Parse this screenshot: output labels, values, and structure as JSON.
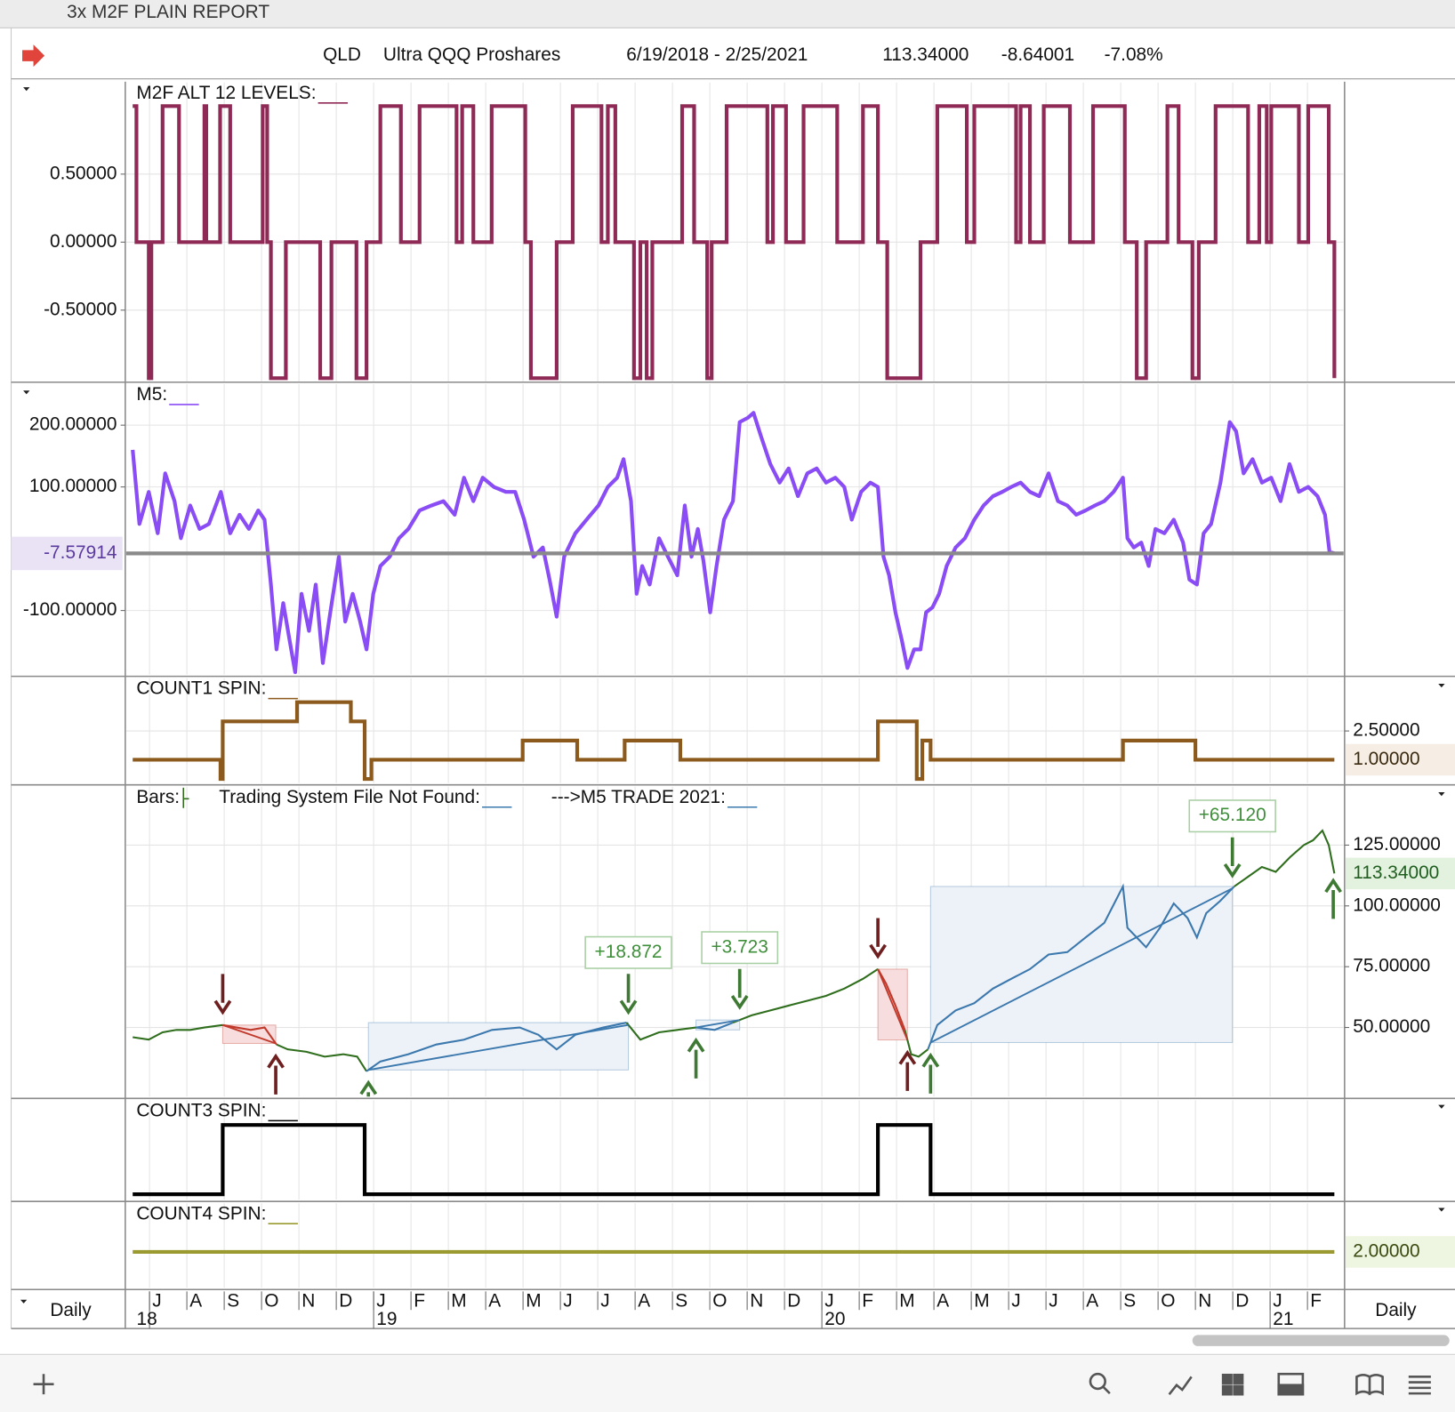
{
  "window_title": "3x M2F PLAIN REPORT",
  "header": {
    "symbol": "QLD",
    "name": "Ultra QQQ Proshares",
    "date_range": "6/19/2018 - 2/25/2021",
    "last": "113.34000",
    "change": "-8.64001",
    "change_percent": "-7.08%"
  },
  "x_axis": {
    "xlim": [
      -0.45,
      31.72
    ],
    "xticks": [
      {
        "value": 0,
        "label": "J"
      },
      {
        "value": 1,
        "label": "A"
      },
      {
        "value": 2,
        "label": "S"
      },
      {
        "value": 3,
        "label": "O"
      },
      {
        "value": 4,
        "label": "N"
      },
      {
        "value": 5,
        "label": "D"
      },
      {
        "value": 6,
        "label": "J"
      },
      {
        "value": 7,
        "label": "F"
      },
      {
        "value": 8,
        "label": "M"
      },
      {
        "value": 9,
        "label": "A"
      },
      {
        "value": 10,
        "label": "M"
      },
      {
        "value": 11,
        "label": "J"
      },
      {
        "value": 12,
        "label": "J"
      },
      {
        "value": 13,
        "label": "A"
      },
      {
        "value": 14,
        "label": "S"
      },
      {
        "value": 15,
        "label": "O"
      },
      {
        "value": 16,
        "label": "N"
      },
      {
        "value": 17,
        "label": "D"
      },
      {
        "value": 18,
        "label": "J"
      },
      {
        "value": 19,
        "label": "F"
      },
      {
        "value": 20,
        "label": "M"
      },
      {
        "value": 21,
        "label": "A"
      },
      {
        "value": 22,
        "label": "M"
      },
      {
        "value": 23,
        "label": "J"
      },
      {
        "value": 24,
        "label": "J"
      },
      {
        "value": 25,
        "label": "A"
      },
      {
        "value": 26,
        "label": "S"
      },
      {
        "value": 27,
        "label": "O"
      },
      {
        "value": 28,
        "label": "N"
      },
      {
        "value": 29,
        "label": "D"
      },
      {
        "value": 30,
        "label": "J"
      },
      {
        "value": 31,
        "label": "F"
      }
    ],
    "years": [
      {
        "value": 0,
        "label": "18"
      },
      {
        "value": 6,
        "label": "19"
      },
      {
        "value": 18,
        "label": "20"
      },
      {
        "value": 30,
        "label": "21"
      }
    ],
    "period_label": "Daily"
  },
  "chart_data": [
    {
      "type": "step",
      "title": "M2F ALT 12 LEVELS:",
      "color": "#8e2a55",
      "axis_side": "left",
      "ylim": [
        -1.03,
        1.18
      ],
      "yticks": [
        {
          "value": 0.5,
          "label": "0.50000"
        },
        {
          "value": 0,
          "label": "0.00000"
        },
        {
          "value": -0.5,
          "label": "-0.50000"
        }
      ],
      "x": [
        -0.45,
        -0.35,
        -0.02,
        0.05,
        0.35,
        0.79,
        1.47,
        1.52,
        1.89,
        2.16,
        3.03,
        3.15,
        3.25,
        3.65,
        4.57,
        4.87,
        5.54,
        5.81,
        6.18,
        6.73,
        7.23,
        8.22,
        8.37,
        8.67,
        9.16,
        10.06,
        10.21,
        10.9,
        11.33,
        12.1,
        12.27,
        12.47,
        12.97,
        13.14,
        13.31,
        13.46,
        14.26,
        14.58,
        14.93,
        15.05,
        15.45,
        16.54,
        16.69,
        17.04,
        17.51,
        18.41,
        19.1,
        19.5,
        19.75,
        20.64,
        21.09,
        21.88,
        22.08,
        23.2,
        23.32,
        23.57,
        23.94,
        24.64,
        25.26,
        26.11,
        26.43,
        26.68,
        27.25,
        27.55,
        27.92,
        28.09,
        28.54,
        29.41,
        29.71,
        29.91,
        30.03,
        30.77,
        31.02,
        31.57,
        31.72
      ],
      "values": [
        1,
        0,
        -1,
        0,
        1,
        0,
        1,
        0,
        1,
        0,
        1,
        0,
        -1,
        0,
        -1,
        0,
        -1,
        0,
        1,
        0,
        1,
        0,
        1,
        0,
        1,
        0,
        -1,
        0,
        1,
        0,
        1,
        0,
        -1,
        0,
        -1,
        0,
        1,
        0,
        -1,
        0,
        1,
        0,
        1,
        0,
        1,
        0,
        1,
        0,
        -1,
        0,
        1,
        0,
        1,
        0,
        1,
        0,
        1,
        0,
        1,
        0,
        -1,
        0,
        1,
        0,
        -1,
        0,
        1,
        0,
        1,
        0,
        1,
        0,
        1,
        0,
        -1
      ]
    },
    {
      "type": "line",
      "title": "M5:",
      "color": "#8a4cf5",
      "axis_side": "left",
      "ylim": [
        -205,
        268
      ],
      "yticks": [
        {
          "value": 200,
          "label": "200.00000"
        },
        {
          "value": 100,
          "label": "100.00000"
        },
        {
          "value": -100,
          "label": "-100.00000"
        }
      ],
      "x": [
        -0.45,
        -0.27,
        -0.02,
        0.22,
        0.42,
        0.67,
        0.84,
        1.09,
        1.34,
        1.59,
        1.91,
        2.16,
        2.41,
        2.66,
        2.91,
        3.08,
        3.25,
        3.4,
        3.58,
        3.75,
        3.9,
        4.07,
        4.27,
        4.45,
        4.64,
        4.84,
        5.07,
        5.24,
        5.44,
        5.64,
        5.81,
        5.99,
        6.18,
        6.43,
        6.68,
        6.93,
        7.23,
        7.55,
        7.87,
        8.17,
        8.42,
        8.67,
        8.92,
        9.22,
        9.54,
        9.79,
        10.03,
        10.28,
        10.53,
        10.71,
        10.9,
        11.1,
        11.4,
        11.7,
        12.02,
        12.27,
        12.52,
        12.69,
        12.89,
        13.04,
        13.19,
        13.39,
        13.64,
        13.88,
        14.13,
        14.33,
        14.51,
        14.68,
        14.83,
        15.01,
        15.18,
        15.38,
        15.62,
        15.8,
        16.02,
        16.17,
        16.37,
        16.62,
        16.87,
        17.11,
        17.36,
        17.61,
        17.86,
        18.11,
        18.36,
        18.6,
        18.8,
        19.05,
        19.3,
        19.5,
        19.65,
        19.8,
        19.97,
        20.14,
        20.29,
        20.47,
        20.64,
        20.79,
        20.96,
        21.14,
        21.34,
        21.58,
        21.83,
        22.08,
        22.33,
        22.58,
        22.83,
        23.07,
        23.32,
        23.57,
        23.82,
        24.07,
        24.32,
        24.57,
        24.81,
        25.06,
        25.31,
        25.56,
        25.81,
        26.06,
        26.18,
        26.35,
        26.55,
        26.75,
        26.93,
        27.17,
        27.42,
        27.67,
        27.84,
        28.04,
        28.22,
        28.42,
        28.67,
        28.92,
        29.09,
        29.29,
        29.53,
        29.78,
        30.03,
        30.28,
        30.52,
        30.77,
        31.02,
        31.27,
        31.47,
        31.59,
        31.72
      ],
      "values": [
        160,
        40,
        92,
        25,
        122,
        77,
        17,
        70,
        32,
        40,
        92,
        25,
        55,
        32,
        62,
        47,
        -58,
        -163,
        -88,
        -148,
        -200,
        -73,
        -133,
        -58,
        -185,
        -103,
        -13,
        -118,
        -73,
        -118,
        -163,
        -73,
        -28,
        -13,
        17,
        32,
        62,
        70,
        77,
        55,
        115,
        77,
        115,
        100,
        92,
        92,
        47,
        -13,
        2,
        -50,
        -110,
        -13,
        25,
        47,
        70,
        100,
        115,
        145,
        77,
        -73,
        -28,
        -58,
        17,
        -13,
        -43,
        70,
        -13,
        32,
        -20,
        -103,
        -28,
        47,
        77,
        205,
        212,
        220,
        182,
        137,
        107,
        130,
        85,
        122,
        130,
        107,
        115,
        100,
        47,
        92,
        107,
        100,
        -13,
        -43,
        -103,
        -148,
        -193,
        -163,
        -163,
        -103,
        -95,
        -73,
        -28,
        2,
        17,
        47,
        70,
        85,
        92,
        100,
        107,
        92,
        85,
        122,
        77,
        70,
        55,
        62,
        70,
        77,
        92,
        115,
        17,
        2,
        10,
        -28,
        32,
        25,
        47,
        10,
        -50,
        -58,
        25,
        40,
        107,
        205,
        190,
        122,
        145,
        107,
        115,
        77,
        137,
        92,
        100,
        85,
        55,
        -5,
        -7.57914
      ],
      "last_value": {
        "value": -7.57914,
        "label": "-7.57914",
        "fill": "#e9e3f5",
        "text_color": "#5c3b9e",
        "line_color": "#8a8a8a"
      }
    },
    {
      "type": "step",
      "title": "COUNT1 SPIN:",
      "color": "#8b5a1c",
      "axis_side": "right",
      "ylim": [
        -0.26,
        5.3
      ],
      "yticks": [
        {
          "value": 2.5,
          "label": "2.50000"
        }
      ],
      "x": [
        -0.45,
        1.9,
        1.96,
        3.95,
        5.39,
        5.76,
        5.94,
        9.99,
        11.45,
        12.72,
        14.21,
        19.5,
        20.54,
        20.69,
        20.91,
        26.06,
        28.0,
        31.72
      ],
      "values": [
        1,
        0,
        3,
        4,
        3,
        0,
        1,
        2,
        1,
        2,
        1,
        3,
        0,
        2,
        1,
        2,
        1,
        1
      ],
      "last_value": {
        "value": 1,
        "label": "1.00000",
        "fill": "#f6eee4",
        "text_color": "#3a2a10"
      }
    },
    {
      "type": "price",
      "titles": [
        "Bars:",
        "Trading System File Not Found:",
        "--->M5 TRADE 2021:"
      ],
      "color": "#2f6e1d",
      "axis_side": "right",
      "ylim": [
        21.2,
        149.4
      ],
      "yticks": [
        {
          "value": 125,
          "label": "125.00000"
        },
        {
          "value": 100,
          "label": "100.00000"
        },
        {
          "value": 75,
          "label": "75.00000"
        },
        {
          "value": 50,
          "label": "50.00000"
        }
      ],
      "x": [
        -0.45,
        -0.02,
        0.35,
        0.72,
        1.09,
        1.47,
        1.96,
        2.33,
        2.71,
        3.08,
        3.4,
        3.7,
        4.2,
        4.69,
        5.19,
        5.56,
        5.81,
        6.18,
        6.93,
        7.68,
        8.42,
        9.17,
        9.91,
        10.41,
        10.9,
        11.4,
        12.15,
        12.77,
        13.14,
        13.64,
        14.13,
        14.63,
        15.13,
        15.62,
        16.12,
        16.62,
        17.11,
        17.61,
        18.11,
        18.6,
        19.1,
        19.5,
        19.72,
        19.97,
        20.22,
        20.39,
        20.59,
        20.84,
        21.09,
        21.58,
        22.08,
        22.58,
        23.07,
        23.57,
        24.07,
        24.57,
        25.06,
        25.56,
        26.06,
        26.18,
        26.43,
        26.68,
        27.05,
        27.42,
        27.79,
        28.04,
        28.29,
        28.66,
        29.04,
        29.41,
        29.78,
        30.15,
        30.53,
        30.9,
        31.15,
        31.4,
        31.57,
        31.72
      ],
      "values": [
        46,
        45,
        48,
        49,
        49,
        50,
        51,
        50,
        49,
        50,
        43,
        41,
        40,
        38,
        39,
        38,
        32,
        36,
        39,
        43,
        45,
        49,
        50,
        47,
        41,
        47,
        50,
        52,
        45,
        48,
        49,
        50,
        49,
        52,
        55,
        57,
        59,
        61,
        63,
        66,
        70,
        74,
        68,
        59,
        49,
        39,
        38,
        41,
        51,
        57,
        60,
        66,
        70,
        74,
        80,
        81,
        87,
        93,
        108,
        91,
        87,
        83,
        91,
        101,
        95,
        87,
        97,
        102,
        108,
        112,
        116,
        114,
        120,
        125,
        127,
        131,
        125,
        113.34
      ],
      "trade_colors": {
        "long": "#3b78ad",
        "short": "#c0392b",
        "long_arrow": "#3f7a34",
        "short_arrow": "#6e1f1f",
        "long_box": "#edf1f8",
        "short_box": "#f7dddd"
      },
      "trades": [
        {
          "side": "short",
          "entry_x": 1.96,
          "exit_x": 3.38
        },
        {
          "side": "long",
          "entry_x": 5.86,
          "exit_x": 12.82,
          "result": "+18.872"
        },
        {
          "side": "long",
          "entry_x": 14.63,
          "exit_x": 15.8,
          "result": "+3.723"
        },
        {
          "side": "short",
          "entry_x": 19.5,
          "exit_x": 20.29
        },
        {
          "side": "long",
          "entry_x": 20.91,
          "exit_x": 28.99,
          "result": "+65.120"
        },
        {
          "side": "long",
          "entry_x": 31.69
        }
      ],
      "last_value": {
        "value": 113.34,
        "label": "113.34000",
        "fill": "#e3f1df",
        "text_color": "#1f5e1f"
      }
    },
    {
      "type": "step",
      "title": "COUNT3 SPIN:",
      "color": "#000000",
      "axis_side": "right",
      "ylim": [
        -0.09,
        1.37
      ],
      "x": [
        -0.45,
        1.96,
        5.76,
        19.5,
        20.91,
        31.72
      ],
      "values": [
        0,
        1,
        0,
        1,
        0,
        0
      ]
    },
    {
      "type": "step",
      "title": "COUNT4 SPIN:",
      "color": "#9a9a30",
      "axis_side": "right",
      "ylim": [
        1,
        3.35
      ],
      "x": [
        -0.45,
        31.72
      ],
      "values": [
        2,
        2
      ],
      "last_value": {
        "value": 2,
        "label": "2.00000",
        "fill": "#eef5e0",
        "text_color": "#3a4a10"
      }
    }
  ]
}
